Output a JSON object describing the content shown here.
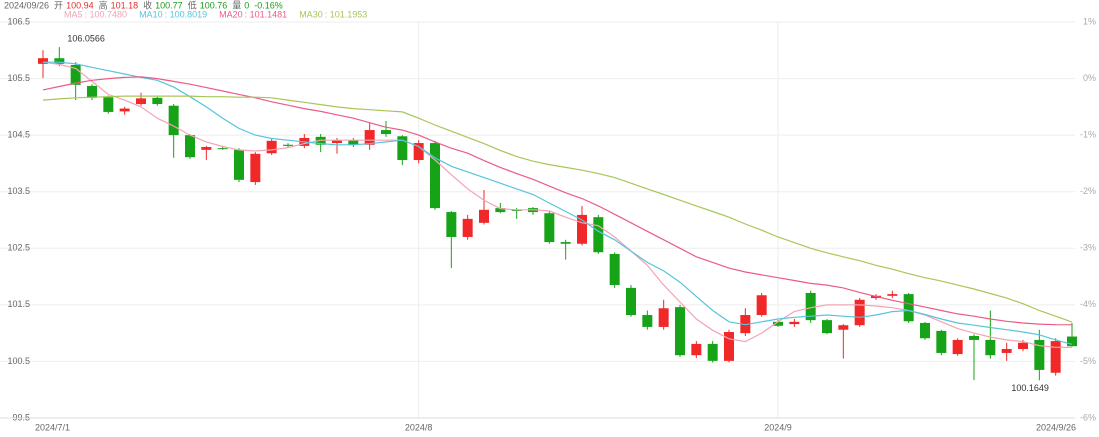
{
  "chart_data": {
    "type": "candlestick",
    "header": {
      "date": "2024/09/26",
      "items": [
        {
          "label": "开",
          "value": "100.94",
          "color": "#e03030"
        },
        {
          "label": "高",
          "value": "101.18",
          "color": "#e03030"
        },
        {
          "label": "收",
          "value": "100.77",
          "color": "#1a9e1a"
        },
        {
          "label": "低",
          "value": "100.76",
          "color": "#1a9e1a"
        },
        {
          "label": "量",
          "value": "0",
          "color": "#1a9e1a"
        },
        {
          "label": "",
          "value": "-0.16%",
          "color": "#1a9e1a"
        }
      ]
    },
    "categories": [
      "2024/7/1",
      null,
      null,
      null,
      null,
      null,
      null,
      null,
      null,
      null,
      null,
      null,
      null,
      null,
      null,
      null,
      null,
      null,
      null,
      null,
      null,
      null,
      null,
      "2024/8",
      null,
      null,
      null,
      null,
      null,
      null,
      null,
      null,
      null,
      null,
      null,
      null,
      null,
      null,
      null,
      null,
      null,
      null,
      null,
      null,
      null,
      "2024/9",
      null,
      null,
      null,
      null,
      null,
      null,
      null,
      null,
      null,
      null,
      null,
      null,
      null,
      null,
      null,
      null,
      null,
      "2024/9/26"
    ],
    "candles": {
      "up_color": "#f02828",
      "down_color": "#17a317",
      "open": [
        105.76,
        105.86,
        105.74,
        105.37,
        105.17,
        104.92,
        105.05,
        105.16,
        105.02,
        104.5,
        104.24,
        104.27,
        104.24,
        103.67,
        104.18,
        104.33,
        104.31,
        104.47,
        104.36,
        104.41,
        104.33,
        104.59,
        104.48,
        104.06,
        104.36,
        103.14,
        102.7,
        102.95,
        103.21,
        103.18,
        103.21,
        103.12,
        102.61,
        102.58,
        103.05,
        102.4,
        101.8,
        101.32,
        101.11,
        101.46,
        100.61,
        100.81,
        100.51,
        101.0,
        101.32,
        101.2,
        101.16,
        101.71,
        101.23,
        101.06,
        101.14,
        101.62,
        101.66,
        101.69,
        101.18,
        101.04,
        100.63,
        100.95,
        100.88,
        100.65,
        100.72,
        100.88,
        100.3,
        100.94
      ],
      "close": [
        105.86,
        105.76,
        105.39,
        105.16,
        104.91,
        104.97,
        105.15,
        105.05,
        104.5,
        104.11,
        104.29,
        104.26,
        103.71,
        104.17,
        104.4,
        104.31,
        104.45,
        104.33,
        104.41,
        104.33,
        104.59,
        104.52,
        104.06,
        104.36,
        103.21,
        102.7,
        103.02,
        103.18,
        103.14,
        103.16,
        103.14,
        102.61,
        102.58,
        103.09,
        102.43,
        101.85,
        101.32,
        101.11,
        101.44,
        100.61,
        100.81,
        100.51,
        101.02,
        101.32,
        101.67,
        101.13,
        101.2,
        101.23,
        101.0,
        101.14,
        101.59,
        101.66,
        101.69,
        101.21,
        100.91,
        100.65,
        100.88,
        100.88,
        100.61,
        100.72,
        100.83,
        100.35,
        100.86,
        100.77
      ],
      "low": [
        105.51,
        105.72,
        105.12,
        105.12,
        104.88,
        104.86,
        105.02,
        105.02,
        104.1,
        104.08,
        104.06,
        104.24,
        103.67,
        103.62,
        104.15,
        104.27,
        104.27,
        104.2,
        104.17,
        104.29,
        104.24,
        104.47,
        103.97,
        104.0,
        103.18,
        102.15,
        102.65,
        102.92,
        103.12,
        103.02,
        103.09,
        102.58,
        102.3,
        102.55,
        102.4,
        101.8,
        101.29,
        101.06,
        101.06,
        100.58,
        100.56,
        100.48,
        100.48,
        100.95,
        101.29,
        101.11,
        101.11,
        101.18,
        100.98,
        100.55,
        101.11,
        101.59,
        101.62,
        101.18,
        100.88,
        100.61,
        100.6,
        100.17,
        100.55,
        100.51,
        100.68,
        100.1649,
        100.25,
        100.76
      ],
      "high": [
        106.0,
        106.0566,
        105.79,
        105.4,
        105.2,
        105.0,
        105.25,
        105.18,
        105.05,
        104.52,
        104.31,
        104.29,
        104.27,
        104.2,
        104.43,
        104.36,
        104.52,
        104.52,
        104.45,
        104.45,
        104.73,
        104.75,
        104.5,
        104.41,
        104.4,
        103.16,
        103.09,
        103.53,
        103.3,
        103.21,
        103.23,
        103.16,
        102.65,
        103.25,
        103.09,
        102.43,
        101.85,
        101.4,
        101.59,
        101.5,
        100.86,
        100.86,
        101.06,
        101.44,
        101.71,
        101.23,
        101.25,
        101.75,
        101.25,
        101.16,
        101.62,
        101.69,
        101.75,
        101.71,
        101.2,
        101.06,
        100.91,
        100.98,
        101.4,
        100.83,
        100.88,
        101.06,
        100.91,
        101.18
      ]
    },
    "series": [
      {
        "name": "MA5",
        "legend_value": "100.7480",
        "color": "#f4a3b6",
        "values": [
          105.79,
          105.75,
          105.68,
          105.45,
          105.22,
          105.12,
          105.0,
          104.8,
          104.66,
          104.5,
          104.38,
          104.3,
          104.24,
          104.22,
          104.24,
          104.28,
          104.35,
          104.41,
          104.41,
          104.41,
          104.41,
          104.41,
          104.41,
          104.3,
          104.06,
          103.8,
          103.55,
          103.35,
          103.2,
          103.18,
          103.18,
          103.16,
          103.05,
          102.95,
          102.9,
          102.7,
          102.45,
          102.2,
          101.85,
          101.55,
          101.25,
          101.05,
          100.9,
          100.85,
          101.0,
          101.2,
          101.38,
          101.45,
          101.5,
          101.5,
          101.5,
          101.48,
          101.45,
          101.4,
          101.32,
          101.2,
          101.08,
          101.0,
          100.93,
          100.88,
          100.85,
          100.78,
          100.75,
          100.748
        ]
      },
      {
        "name": "MA10",
        "legend_value": "100.8019",
        "color": "#56c4de",
        "values": [
          105.79,
          105.79,
          105.76,
          105.7,
          105.64,
          105.58,
          105.52,
          105.47,
          105.35,
          105.18,
          105.0,
          104.8,
          104.62,
          104.5,
          104.44,
          104.41,
          104.38,
          104.35,
          104.33,
          104.33,
          104.35,
          104.38,
          104.41,
          104.3,
          104.1,
          103.95,
          103.85,
          103.75,
          103.65,
          103.55,
          103.45,
          103.3,
          103.15,
          103.0,
          102.8,
          102.65,
          102.45,
          102.25,
          102.1,
          101.9,
          101.65,
          101.4,
          101.2,
          101.15,
          101.2,
          101.25,
          101.28,
          101.3,
          101.32,
          101.3,
          101.28,
          101.32,
          101.38,
          101.4,
          101.33,
          101.25,
          101.18,
          101.14,
          101.1,
          101.06,
          101.02,
          100.97,
          100.88,
          100.8019
        ]
      },
      {
        "name": "MA20",
        "legend_value": "101.1481",
        "color": "#ec5b88",
        "values": [
          105.3,
          105.36,
          105.42,
          105.47,
          105.5,
          105.52,
          105.53,
          105.5,
          105.45,
          105.4,
          105.34,
          105.28,
          105.22,
          105.16,
          105.09,
          105.03,
          104.97,
          104.92,
          104.86,
          104.8,
          104.72,
          104.64,
          104.59,
          104.5,
          104.38,
          104.27,
          104.18,
          104.05,
          103.93,
          103.82,
          103.72,
          103.6,
          103.48,
          103.38,
          103.25,
          103.1,
          102.95,
          102.8,
          102.65,
          102.5,
          102.35,
          102.25,
          102.15,
          102.08,
          102.03,
          101.98,
          101.93,
          101.88,
          101.85,
          101.8,
          101.72,
          101.65,
          101.58,
          101.52,
          101.46,
          101.4,
          101.34,
          101.3,
          101.25,
          101.21,
          101.18,
          101.16,
          101.15,
          101.1481
        ]
      },
      {
        "name": "MA30",
        "legend_value": "101.1953",
        "color": "#a8c657",
        "values": [
          105.12,
          105.14,
          105.16,
          105.17,
          105.18,
          105.19,
          105.19,
          105.19,
          105.19,
          105.19,
          105.18,
          105.18,
          105.17,
          105.17,
          105.16,
          105.12,
          105.08,
          105.04,
          105.0,
          104.97,
          104.95,
          104.93,
          104.91,
          104.8,
          104.68,
          104.57,
          104.46,
          104.35,
          104.23,
          104.12,
          104.04,
          103.98,
          103.93,
          103.88,
          103.82,
          103.75,
          103.65,
          103.55,
          103.45,
          103.35,
          103.25,
          103.15,
          103.05,
          102.93,
          102.82,
          102.7,
          102.6,
          102.5,
          102.42,
          102.35,
          102.28,
          102.2,
          102.13,
          102.05,
          101.98,
          101.92,
          101.85,
          101.78,
          101.7,
          101.62,
          101.52,
          101.4,
          101.3,
          101.1953
        ]
      }
    ],
    "ylim": [
      99.5,
      106.5
    ],
    "yticks": [
      99.5,
      100.5,
      101.5,
      102.5,
      103.5,
      104.5,
      105.5,
      106.5
    ],
    "y2lim": [
      -6,
      1
    ],
    "y2ticks": [
      {
        "value": 1,
        "label": "1%"
      },
      {
        "value": 0,
        "label": "0%"
      },
      {
        "value": -1,
        "label": "-1%"
      },
      {
        "value": -2,
        "label": "-2%"
      },
      {
        "value": -3,
        "label": "-3%"
      },
      {
        "value": -4,
        "label": "-4%"
      },
      {
        "value": -5,
        "label": "-5%"
      },
      {
        "value": -6,
        "label": "-6%"
      }
    ],
    "grid": true,
    "annotations": [
      {
        "candle": 1,
        "field": "high"
      },
      {
        "candle": 61,
        "field": "low"
      }
    ]
  }
}
